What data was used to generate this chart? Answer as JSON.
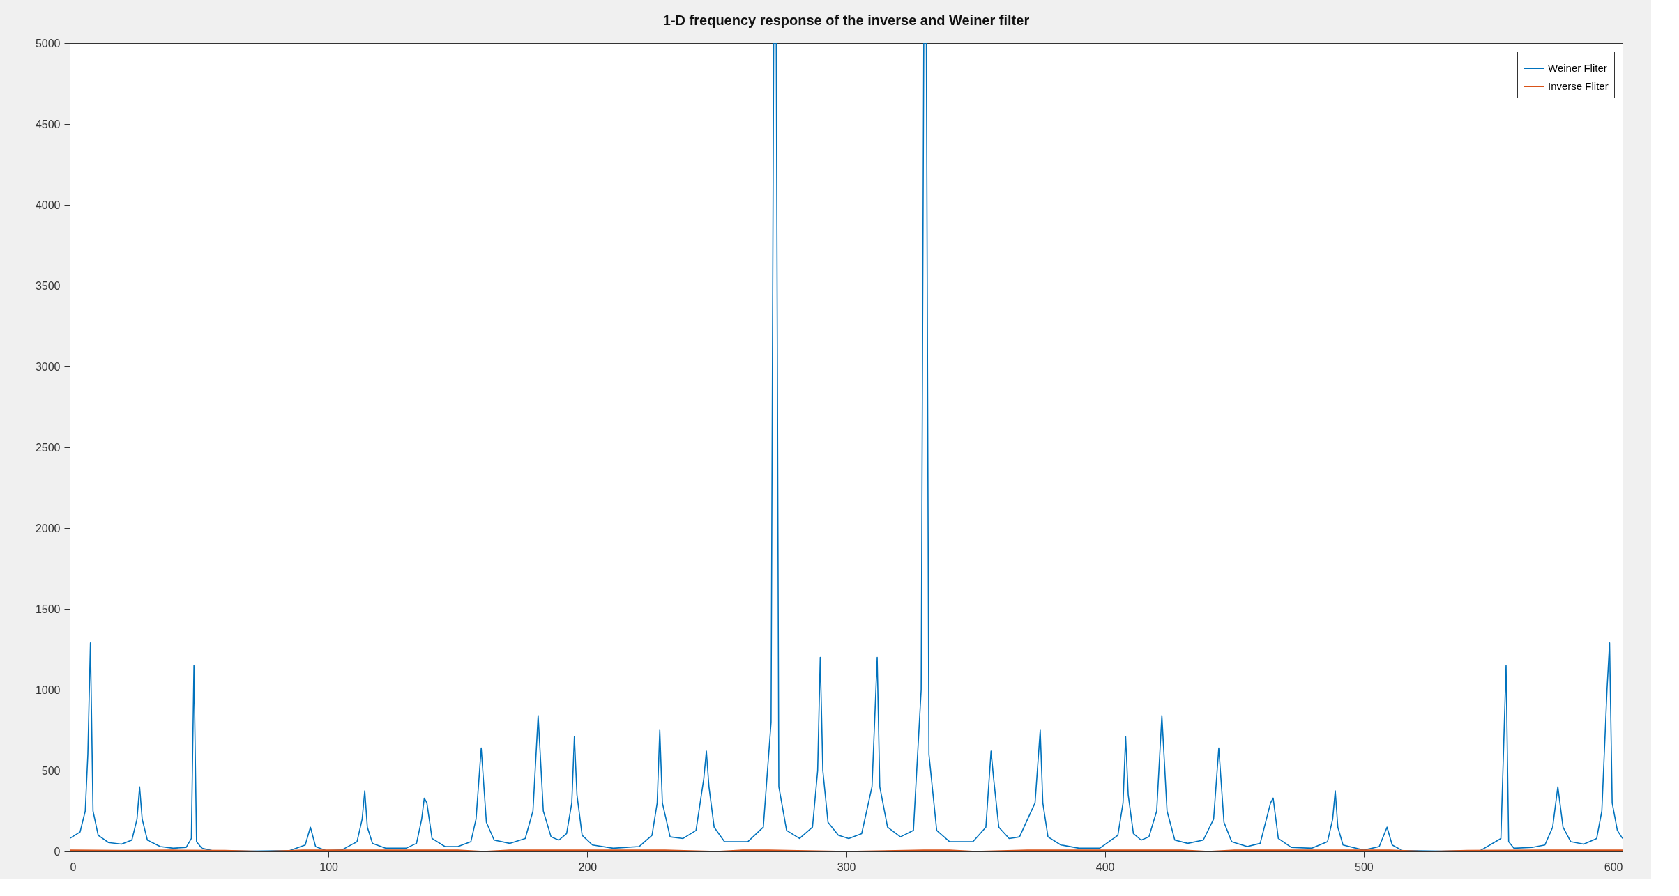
{
  "chart_data": {
    "type": "line",
    "title": "1-D frequency response of the inverse and Weiner filter",
    "xlim": [
      0,
      600
    ],
    "xticks": [
      0,
      100,
      200,
      300,
      400,
      500,
      600
    ],
    "ylim": [
      0,
      5000
    ],
    "yticks": [
      0,
      500,
      1000,
      1500,
      2000,
      2500,
      3000,
      3500,
      4000,
      4500,
      5000
    ],
    "grid": false,
    "legend": "top right",
    "line_style": "solid",
    "marker": "none",
    "series": [
      {
        "name": "Weiner Fliter",
        "color": "#0072bd",
        "x": [
          0,
          4,
          6,
          7,
          8,
          9,
          11,
          15,
          20,
          24,
          26,
          27,
          28,
          30,
          35,
          40,
          45,
          47,
          48,
          49,
          51,
          55,
          70,
          85,
          91,
          93,
          95,
          99,
          105,
          111,
          113,
          114,
          115,
          117,
          122,
          130,
          134,
          136,
          137,
          138,
          140,
          145,
          150,
          155,
          157,
          159,
          161,
          164,
          170,
          176,
          179,
          181,
          183,
          186,
          189,
          192,
          194,
          195,
          196,
          198,
          202,
          210,
          220,
          225,
          227,
          228,
          229,
          232,
          237,
          242,
          245,
          246,
          247,
          249,
          253,
          262,
          268,
          271,
          272,
          273,
          274,
          277,
          282,
          287,
          289,
          290,
          291,
          293,
          297,
          301,
          306,
          310,
          312,
          313,
          316,
          321,
          326,
          329,
          330,
          331,
          332,
          335,
          340,
          349,
          354,
          356,
          357,
          359,
          363,
          367,
          373,
          375,
          376,
          378,
          383,
          390,
          398,
          405,
          407,
          408,
          409,
          411,
          414,
          417,
          420,
          422,
          424,
          427,
          432,
          438,
          442,
          444,
          446,
          449,
          455,
          460,
          464,
          465,
          467,
          472,
          480,
          486,
          488,
          489,
          490,
          492,
          500,
          506,
          509,
          511,
          515,
          530,
          545,
          553,
          555,
          556,
          558,
          565,
          570,
          573,
          575,
          577,
          580,
          585,
          590,
          592,
          594,
          595,
          596,
          598,
          600
        ],
        "values": [
          80,
          120,
          250,
          600,
          1290,
          250,
          100,
          55,
          45,
          70,
          200,
          400,
          200,
          70,
          30,
          20,
          25,
          80,
          1150,
          60,
          20,
          5,
          2,
          5,
          40,
          150,
          30,
          5,
          8,
          60,
          200,
          375,
          150,
          50,
          20,
          20,
          50,
          200,
          330,
          300,
          80,
          30,
          30,
          60,
          200,
          640,
          180,
          70,
          50,
          80,
          250,
          840,
          250,
          90,
          70,
          110,
          300,
          710,
          350,
          100,
          40,
          20,
          30,
          100,
          300,
          750,
          300,
          90,
          80,
          130,
          450,
          620,
          400,
          150,
          60,
          60,
          150,
          800,
          5000,
          5000,
          400,
          130,
          80,
          150,
          500,
          1200,
          500,
          180,
          100,
          80,
          110,
          400,
          1200,
          400,
          150,
          90,
          130,
          1000,
          5000,
          5000,
          600,
          130,
          60,
          60,
          150,
          620,
          450,
          150,
          80,
          90,
          300,
          750,
          300,
          90,
          40,
          20,
          20,
          100,
          300,
          710,
          350,
          110,
          70,
          90,
          250,
          840,
          250,
          70,
          50,
          70,
          200,
          640,
          180,
          60,
          30,
          50,
          300,
          330,
          80,
          25,
          20,
          60,
          200,
          375,
          150,
          40,
          8,
          30,
          150,
          40,
          5,
          2,
          5,
          80,
          1150,
          60,
          20,
          25,
          40,
          150,
          400,
          150,
          60,
          45,
          80,
          250,
          1000,
          1290,
          300,
          130,
          80
        ]
      },
      {
        "name": "Inverse Fliter",
        "color": "#d95319",
        "x": [
          0,
          20,
          40,
          60,
          75,
          90,
          120,
          150,
          160,
          170,
          200,
          230,
          250,
          260,
          270,
          300,
          330,
          340,
          350,
          370,
          400,
          430,
          440,
          450,
          480,
          510,
          525,
          540,
          570,
          600
        ],
        "values": [
          8,
          6,
          8,
          6,
          0,
          8,
          8,
          8,
          0,
          8,
          8,
          8,
          0,
          8,
          8,
          0,
          8,
          8,
          0,
          8,
          8,
          8,
          0,
          8,
          8,
          8,
          0,
          6,
          8,
          8
        ]
      }
    ]
  }
}
